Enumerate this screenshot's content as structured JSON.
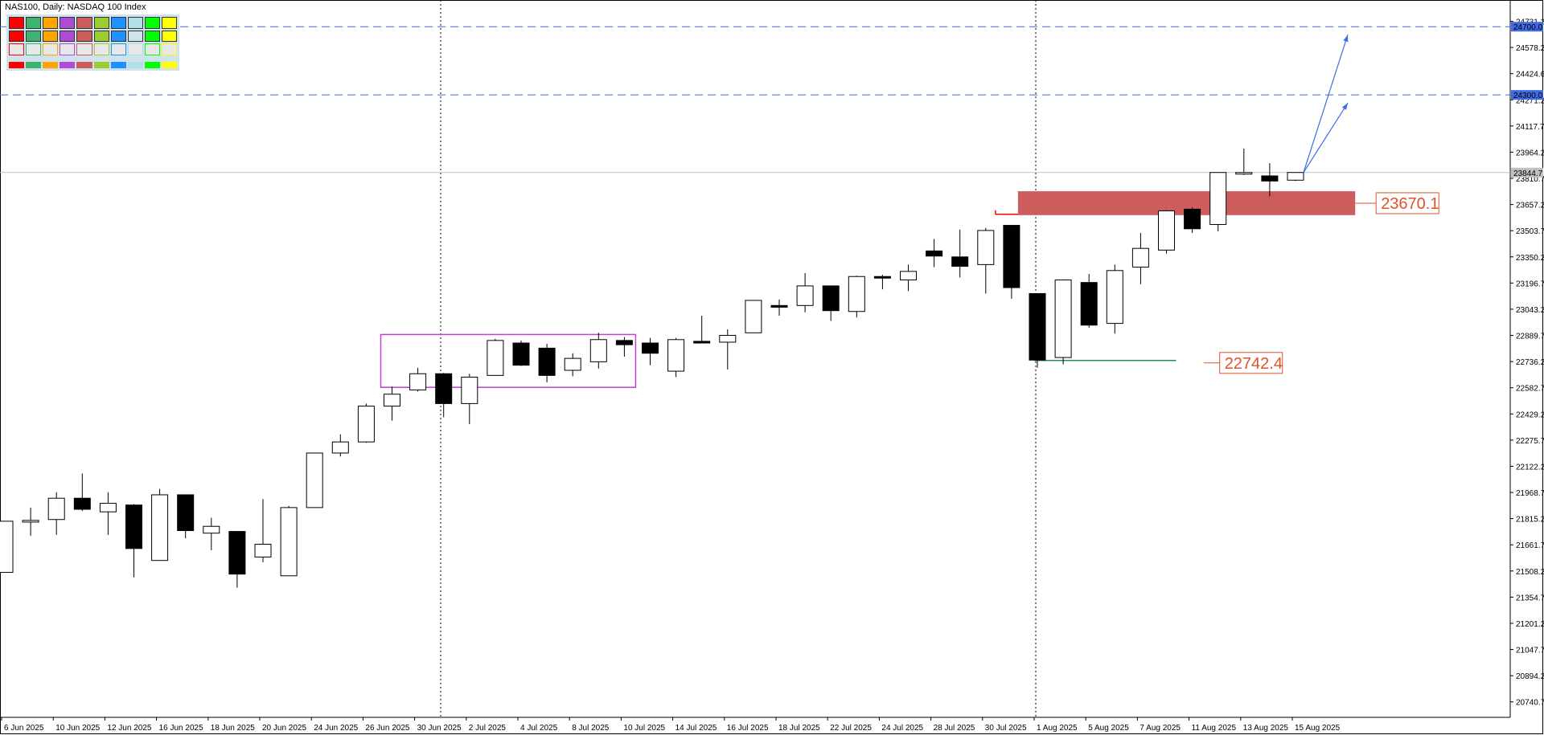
{
  "header": {
    "title": "NAS100, Daily:  NASDAQ 100 Index"
  },
  "palette": {
    "colors": [
      "#ff0000",
      "#3cb371",
      "#ffa500",
      "#b04bd8",
      "#cd5c5c",
      "#9acd32",
      "#1e90ff",
      "#b0e0e6",
      "#00ff00",
      "#ffff00"
    ]
  },
  "chart_data": {
    "type": "candlestick",
    "title": "NAS100, Daily:  NASDAQ 100 Index",
    "ylim": [
      20650,
      24800
    ],
    "y_ticks": [
      24731.2,
      24578.2,
      24424.6,
      24271.2,
      24117.7,
      23964.2,
      23810.7,
      23657.2,
      23503.7,
      23350.2,
      23196.7,
      23043.2,
      22889.7,
      22736.2,
      22582.7,
      22429.2,
      22275.7,
      22122.2,
      21968.7,
      21815.2,
      21661.7,
      21508.2,
      21354.7,
      21201.2,
      21047.7,
      20894.2,
      20740.7
    ],
    "y_tick_labels": [
      "24731.2",
      "24578.2",
      "24424.6",
      "24271.2",
      "24117.7",
      "23964.2",
      "23810.7",
      "23657.2",
      "23503.7",
      "23350.2",
      "23196.7",
      "23043.2",
      "22889.7",
      "22736.2",
      "22582.7",
      "22429.2",
      "22275.7",
      "22122.2",
      "21968.7",
      "21815.2",
      "21661.7",
      "21508.2",
      "21354.7",
      "21201.2",
      "21047.7",
      "20894.2",
      "20740.7"
    ],
    "x_labels": [
      "6 Jun 2025",
      "10 Jun 2025",
      "12 Jun 2025",
      "16 Jun 2025",
      "18 Jun 2025",
      "20 Jun 2025",
      "24 Jun 2025",
      "26 Jun 2025",
      "30 Jun 2025",
      "2 Jul 2025",
      "4 Jul 2025",
      "8 Jul 2025",
      "10 Jul 2025",
      "14 Jul 2025",
      "16 Jul 2025",
      "18 Jul 2025",
      "22 Jul 2025",
      "24 Jul 2025",
      "28 Jul 2025",
      "30 Jul 2025",
      "1 Aug 2025",
      "5 Aug 2025",
      "7 Aug 2025",
      "11 Aug 2025",
      "13 Aug 2025",
      "15 Aug 2025"
    ],
    "candles": [
      {
        "o": 21500,
        "h": 21800,
        "l": 21500,
        "c": 21800
      },
      {
        "o": 21795,
        "h": 21880,
        "l": 21715,
        "c": 21805
      },
      {
        "o": 21810,
        "h": 21970,
        "l": 21720,
        "c": 21935
      },
      {
        "o": 21935,
        "h": 22080,
        "l": 21860,
        "c": 21870
      },
      {
        "o": 21855,
        "h": 21970,
        "l": 21720,
        "c": 21905
      },
      {
        "o": 21895,
        "h": 21900,
        "l": 21470,
        "c": 21640
      },
      {
        "o": 21570,
        "h": 21990,
        "l": 21570,
        "c": 21955
      },
      {
        "o": 21955,
        "h": 21955,
        "l": 21700,
        "c": 21745
      },
      {
        "o": 21730,
        "h": 21820,
        "l": 21630,
        "c": 21770
      },
      {
        "o": 21740,
        "h": 21740,
        "l": 21410,
        "c": 21490
      },
      {
        "o": 21590,
        "h": 21930,
        "l": 21560,
        "c": 21665
      },
      {
        "o": 21480,
        "h": 21890,
        "l": 21480,
        "c": 21880
      },
      {
        "o": 21880,
        "h": 22200,
        "l": 21880,
        "c": 22200
      },
      {
        "o": 22200,
        "h": 22310,
        "l": 22180,
        "c": 22265
      },
      {
        "o": 22265,
        "h": 22490,
        "l": 22260,
        "c": 22475
      },
      {
        "o": 22475,
        "h": 22590,
        "l": 22390,
        "c": 22545
      },
      {
        "o": 22570,
        "h": 22700,
        "l": 22560,
        "c": 22665
      },
      {
        "o": 22665,
        "h": 22670,
        "l": 22410,
        "c": 22490
      },
      {
        "o": 22490,
        "h": 22665,
        "l": 22370,
        "c": 22645
      },
      {
        "o": 22655,
        "h": 22870,
        "l": 22655,
        "c": 22860
      },
      {
        "o": 22845,
        "h": 22860,
        "l": 22710,
        "c": 22715
      },
      {
        "o": 22815,
        "h": 22840,
        "l": 22615,
        "c": 22655
      },
      {
        "o": 22685,
        "h": 22785,
        "l": 22650,
        "c": 22755
      },
      {
        "o": 22735,
        "h": 22905,
        "l": 22695,
        "c": 22865
      },
      {
        "o": 22860,
        "h": 22880,
        "l": 22765,
        "c": 22835
      },
      {
        "o": 22845,
        "h": 22875,
        "l": 22715,
        "c": 22785
      },
      {
        "o": 22680,
        "h": 22875,
        "l": 22645,
        "c": 22865
      },
      {
        "o": 22855,
        "h": 23005,
        "l": 22845,
        "c": 22845
      },
      {
        "o": 22850,
        "h": 22925,
        "l": 22690,
        "c": 22890
      },
      {
        "o": 22905,
        "h": 23095,
        "l": 22905,
        "c": 23095
      },
      {
        "o": 23065,
        "h": 23100,
        "l": 23005,
        "c": 23055
      },
      {
        "o": 23065,
        "h": 23255,
        "l": 23025,
        "c": 23180
      },
      {
        "o": 23180,
        "h": 23180,
        "l": 22975,
        "c": 23035
      },
      {
        "o": 23030,
        "h": 23240,
        "l": 22995,
        "c": 23235
      },
      {
        "o": 23235,
        "h": 23245,
        "l": 23160,
        "c": 23230
      },
      {
        "o": 23215,
        "h": 23305,
        "l": 23150,
        "c": 23265
      },
      {
        "o": 23385,
        "h": 23455,
        "l": 23290,
        "c": 23355
      },
      {
        "o": 23350,
        "h": 23510,
        "l": 23230,
        "c": 23295
      },
      {
        "o": 23305,
        "h": 23520,
        "l": 23135,
        "c": 23505
      },
      {
        "o": 23535,
        "h": 23535,
        "l": 23105,
        "c": 23170
      },
      {
        "o": 23135,
        "h": 23135,
        "l": 22700,
        "c": 22745
      },
      {
        "o": 22760,
        "h": 23215,
        "l": 22720,
        "c": 23215
      },
      {
        "o": 23200,
        "h": 23250,
        "l": 22935,
        "c": 22950
      },
      {
        "o": 22960,
        "h": 23305,
        "l": 22900,
        "c": 23270
      },
      {
        "o": 23290,
        "h": 23490,
        "l": 23190,
        "c": 23400
      },
      {
        "o": 23390,
        "h": 23625,
        "l": 23370,
        "c": 23620
      },
      {
        "o": 23630,
        "h": 23640,
        "l": 23490,
        "c": 23515
      },
      {
        "o": 23540,
        "h": 23845,
        "l": 23500,
        "c": 23845
      },
      {
        "o": 23845,
        "h": 23985,
        "l": 23830,
        "c": 23845
      },
      {
        "o": 23825,
        "h": 23900,
        "l": 23705,
        "c": 23795
      },
      {
        "o": 23800,
        "h": 23845,
        "l": 23795,
        "c": 23845
      }
    ],
    "h_lines": [
      {
        "y": 24700.0,
        "label": "24700.0"
      },
      {
        "y": 24300.0,
        "label": "24300.0"
      }
    ],
    "current_price": {
      "y": 23844.7,
      "label": "23844.7"
    },
    "zones": [
      {
        "label": "23670.1",
        "y_top": 23735,
        "y_bottom": 23595,
        "color": "#cd5c5c"
      }
    ],
    "levels": [
      {
        "label": "22742.4",
        "y": 22742.4,
        "color": "#2e8b57"
      }
    ],
    "resistance_line": {
      "y": 23600,
      "color": "#ff0000"
    },
    "accumulation_box": {
      "y_top": 22895,
      "y_bottom": 22585,
      "color": "#c040d0"
    },
    "projection_arrows": [
      {
        "to_y": 24700
      },
      {
        "to_y": 24300
      }
    ]
  }
}
